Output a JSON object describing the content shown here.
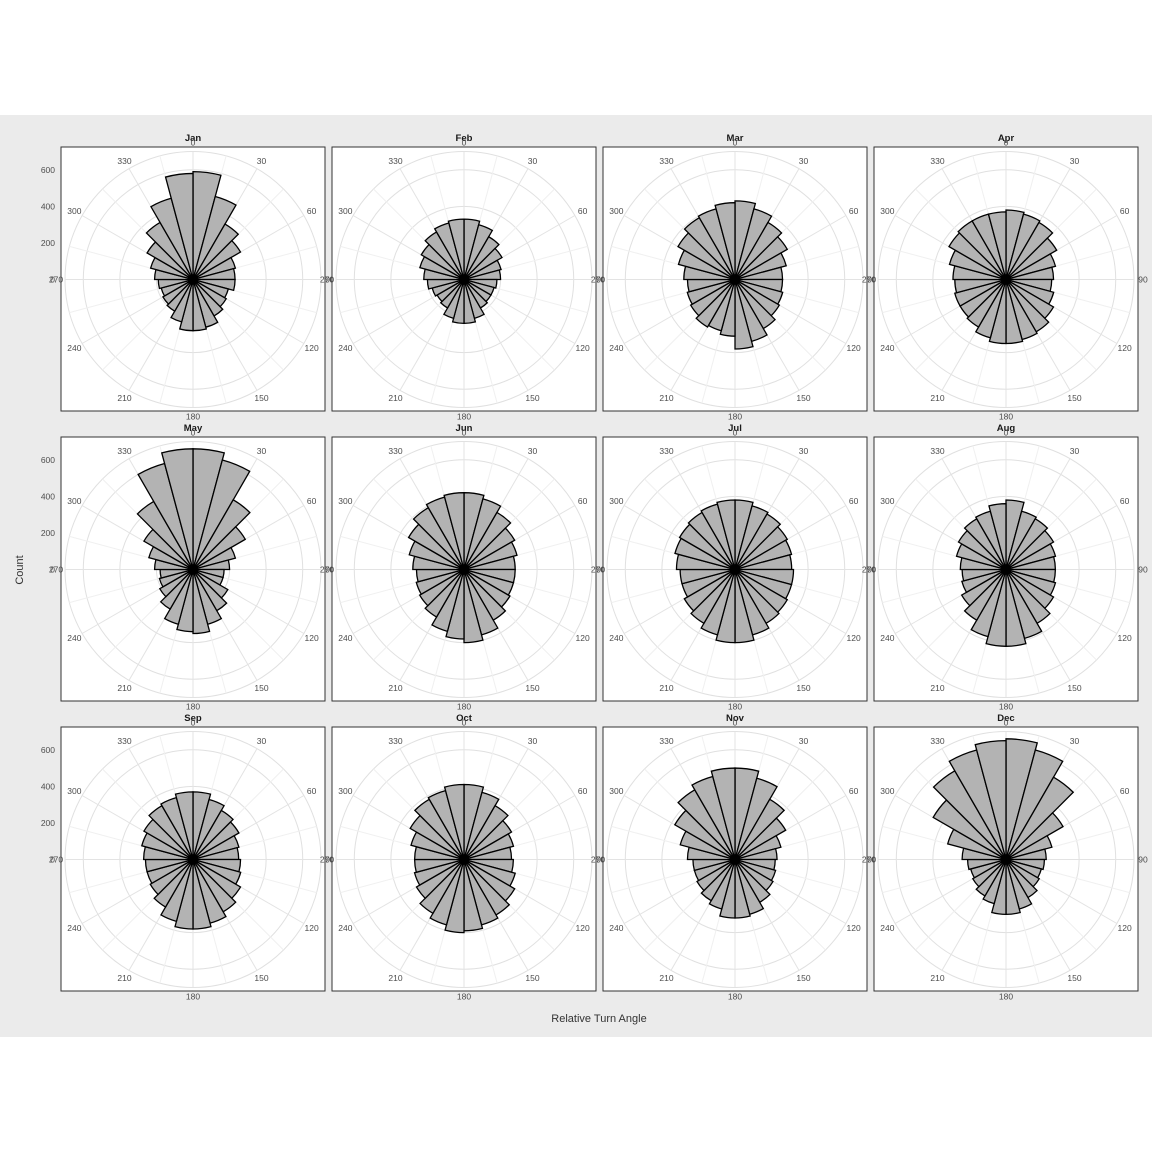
{
  "chart_data": {
    "type": "bar",
    "subtype": "polar-rose-histogram",
    "xlabel": "Relative Turn Angle",
    "ylabel": "Count",
    "y_ticks": [
      "0",
      "200",
      "400",
      "600"
    ],
    "ylim": [
      0,
      700
    ],
    "angle_ticks": [
      "0",
      "30",
      "60",
      "90",
      "120",
      "150",
      "180",
      "210",
      "240",
      "270",
      "300",
      "330"
    ],
    "bin_centers_deg": [
      7.5,
      22.5,
      37.5,
      52.5,
      67.5,
      82.5,
      97.5,
      112.5,
      127.5,
      142.5,
      157.5,
      172.5,
      187.5,
      202.5,
      217.5,
      232.5,
      247.5,
      262.5,
      277.5,
      292.5,
      307.5,
      322.5,
      337.5,
      352.5
    ],
    "grid": true,
    "fill_color": "#b3b3b3",
    "panels": [
      {
        "label": "Jan",
        "values": [
          590,
          470,
          350,
          300,
          240,
          230,
          230,
          200,
          210,
          230,
          270,
          280,
          280,
          240,
          200,
          190,
          180,
          190,
          210,
          240,
          290,
          360,
          460,
          580
        ]
      },
      {
        "label": "Feb",
        "values": [
          330,
          310,
          270,
          240,
          210,
          200,
          180,
          170,
          170,
          180,
          220,
          240,
          240,
          220,
          180,
          170,
          180,
          200,
          220,
          250,
          270,
          300,
          320,
          330
        ]
      },
      {
        "label": "Mar",
        "values": [
          430,
          400,
          360,
          330,
          290,
          260,
          260,
          270,
          280,
          310,
          350,
          380,
          310,
          290,
          300,
          280,
          270,
          260,
          280,
          320,
          360,
          390,
          400,
          420
        ]
      },
      {
        "label": "Apr",
        "values": [
          380,
          370,
          360,
          320,
          280,
          260,
          250,
          270,
          300,
          330,
          340,
          350,
          350,
          330,
          300,
          290,
          290,
          280,
          290,
          320,
          360,
          370,
          370,
          370
        ]
      },
      {
        "label": "May",
        "values": [
          660,
          620,
          440,
          330,
          240,
          200,
          170,
          170,
          220,
          260,
          310,
          350,
          340,
          310,
          250,
          210,
          190,
          180,
          210,
          250,
          310,
          430,
          600,
          660
        ]
      },
      {
        "label": "Jun",
        "values": [
          420,
          400,
          360,
          320,
          300,
          280,
          280,
          280,
          290,
          320,
          370,
          400,
          380,
          350,
          300,
          280,
          270,
          260,
          280,
          310,
          350,
          390,
          410,
          420
        ]
      },
      {
        "label": "Jul",
        "values": [
          380,
          360,
          350,
          330,
          320,
          310,
          320,
          320,
          330,
          340,
          370,
          400,
          400,
          370,
          340,
          320,
          300,
          300,
          320,
          340,
          350,
          360,
          370,
          380
        ]
      },
      {
        "label": "Aug",
        "values": [
          380,
          330,
          320,
          300,
          280,
          270,
          270,
          280,
          300,
          340,
          390,
          420,
          420,
          380,
          320,
          280,
          250,
          240,
          250,
          280,
          300,
          320,
          330,
          360
        ]
      },
      {
        "label": "Sep",
        "values": [
          370,
          340,
          310,
          290,
          260,
          250,
          260,
          270,
          300,
          330,
          360,
          380,
          380,
          350,
          300,
          270,
          260,
          260,
          270,
          290,
          310,
          340,
          350,
          370
        ]
      },
      {
        "label": "Oct",
        "values": [
          410,
          380,
          340,
          300,
          280,
          260,
          270,
          290,
          320,
          350,
          370,
          390,
          400,
          370,
          340,
          300,
          280,
          270,
          270,
          300,
          340,
          380,
          390,
          410
        ]
      },
      {
        "label": "Nov",
        "values": [
          500,
          460,
          380,
          320,
          260,
          230,
          220,
          230,
          240,
          270,
          310,
          320,
          320,
          280,
          260,
          240,
          230,
          230,
          260,
          310,
          380,
          440,
          470,
          500
        ]
      },
      {
        "label": "Dec",
        "values": [
          660,
          620,
          520,
          360,
          260,
          220,
          210,
          200,
          210,
          240,
          280,
          300,
          300,
          250,
          230,
          210,
          200,
          210,
          240,
          330,
          460,
          560,
          620,
          650
        ]
      }
    ]
  }
}
